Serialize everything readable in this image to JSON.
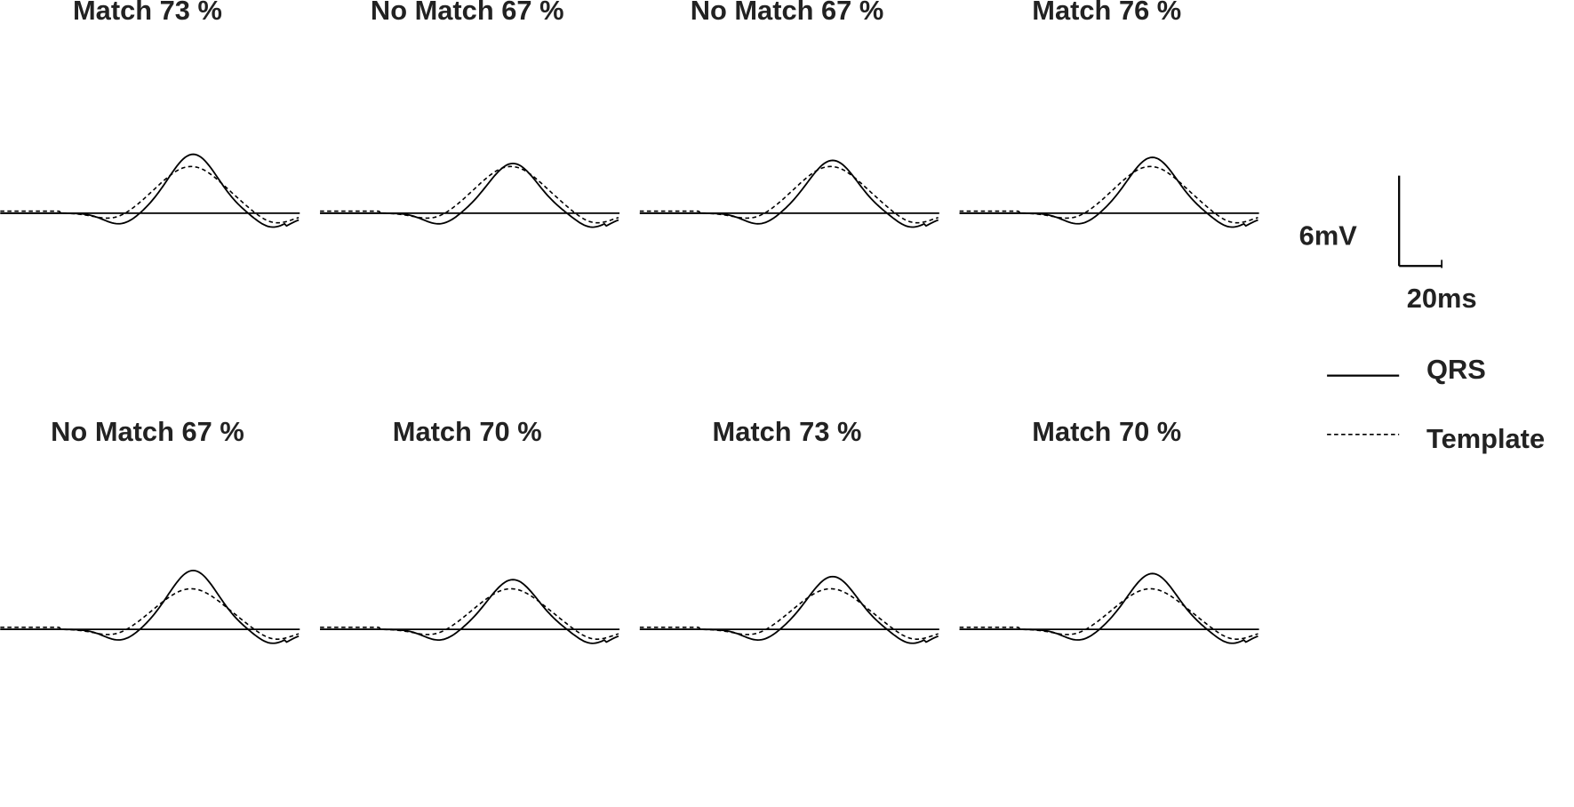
{
  "panels": [
    {
      "title": "Match 73 %"
    },
    {
      "title": "No Match 67 %"
    },
    {
      "title": "No Match 67 %"
    },
    {
      "title": "Match 76 %"
    },
    {
      "title": "No Match 67 %"
    },
    {
      "title": "Match 70 %"
    },
    {
      "title": "Match 73 %"
    },
    {
      "title": "Match 70 %"
    }
  ],
  "scale": {
    "voltage": "6mV",
    "time": "20ms"
  },
  "legend": [
    {
      "label": "QRS"
    },
    {
      "label": "Template"
    }
  ]
}
